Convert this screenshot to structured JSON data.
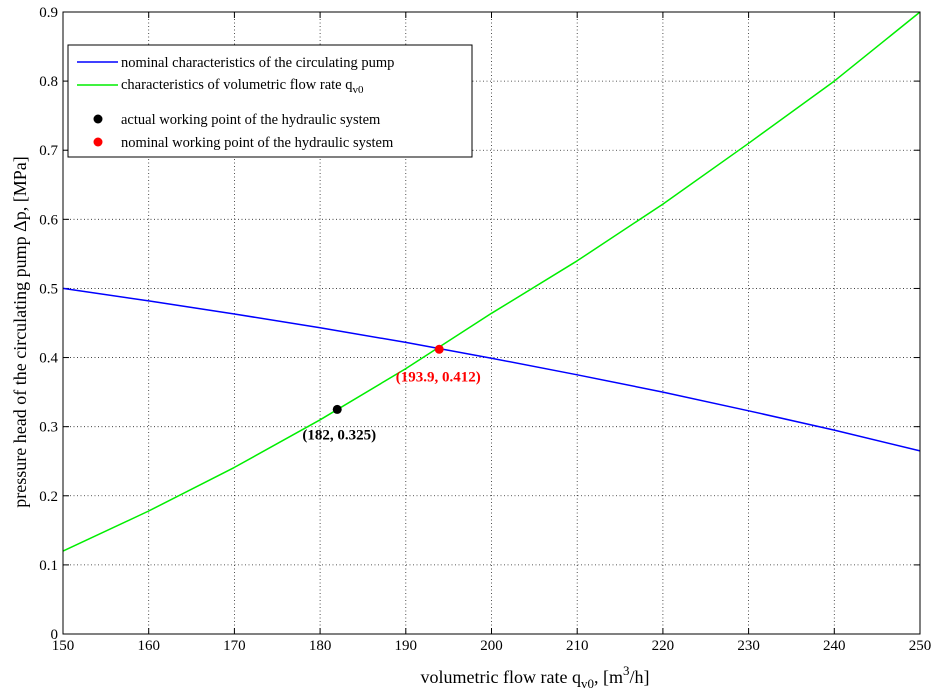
{
  "chart_data": {
    "type": "line",
    "xlabel": "volumetric flow rate q",
    "xlabel_sub": "v0",
    "xlabel_tail": ", [m",
    "xlabel_sup": "3",
    "xlabel_end": "/h]",
    "ylabel": "pressure head of the circulating pump Δp, [MPa]",
    "xlim": [
      150,
      250
    ],
    "ylim": [
      0,
      0.9
    ],
    "x_ticks": [
      "150",
      "160",
      "170",
      "180",
      "190",
      "200",
      "210",
      "220",
      "230",
      "240",
      "250"
    ],
    "y_ticks": [
      "0",
      "0.1",
      "0.2",
      "0.3",
      "0.4",
      "0.5",
      "0.6",
      "0.7",
      "0.8",
      "0.9"
    ],
    "grid": true,
    "legend_position": "top-left",
    "series": [
      {
        "name": "nominal characteristics of the circulating pump",
        "color": "#0000ff",
        "x": [
          150,
          160,
          170,
          180,
          190,
          200,
          210,
          220,
          230,
          240,
          250
        ],
        "y": [
          0.5,
          0.482,
          0.463,
          0.443,
          0.422,
          0.399,
          0.375,
          0.35,
          0.323,
          0.295,
          0.265
        ]
      },
      {
        "name": "characteristics of volumetric flow rate q",
        "name_sub": "v0",
        "color": "#00ee00",
        "x": [
          150,
          160,
          170,
          180,
          190,
          200,
          210,
          220,
          230,
          240,
          250
        ],
        "y": [
          0.12,
          0.178,
          0.241,
          0.31,
          0.384,
          0.464,
          0.54,
          0.622,
          0.71,
          0.8,
          0.9
        ]
      }
    ],
    "points": [
      {
        "name": "actual working point of the hydraulic system",
        "color": "#000000",
        "x": 182,
        "y": 0.325,
        "label": "(182, 0.325)"
      },
      {
        "name": "nominal working point of the hydraulic system",
        "color": "#ff0000",
        "x": 193.9,
        "y": 0.412,
        "label": "(193.9, 0.412)"
      }
    ]
  }
}
